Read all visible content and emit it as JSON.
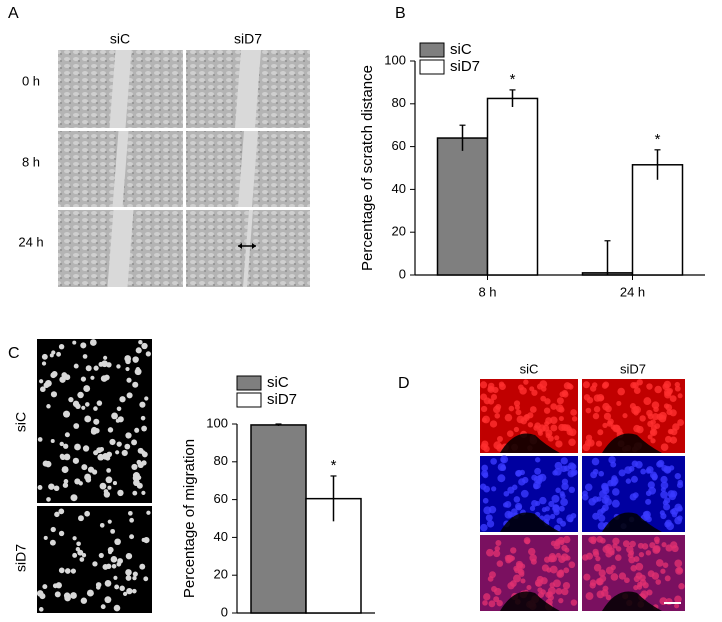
{
  "panels": {
    "A": {
      "label": "A",
      "columns": [
        "siC",
        "siD7"
      ],
      "rows": [
        "0 h",
        "8 h",
        "24 h"
      ]
    },
    "B": {
      "label": "B"
    },
    "C": {
      "label": "C",
      "rows": [
        "siC",
        "siD7"
      ]
    },
    "D": {
      "label": "D",
      "columns": [
        "siC",
        "siD7"
      ]
    }
  },
  "chart_data": [
    {
      "type": "bar",
      "ylabel": "Percentage of scratch distance",
      "categories": [
        "8 h",
        "24 h"
      ],
      "series": [
        {
          "name": "siC",
          "color": "#7f7f7f",
          "values": [
            64,
            1
          ],
          "errors": [
            6,
            15
          ]
        },
        {
          "name": "siD7",
          "color": "#ffffff",
          "values": [
            82.5,
            51.5
          ],
          "errors": [
            4,
            7
          ]
        }
      ],
      "annotations": [
        "*",
        "*"
      ],
      "ylim": [
        0,
        100
      ],
      "yticks": [
        0,
        20,
        40,
        60,
        80,
        100
      ]
    },
    {
      "type": "bar",
      "ylabel": "Percentage of migration",
      "categories": [
        null
      ],
      "series": [
        {
          "name": "siC",
          "color": "#7f7f7f",
          "values": [
            99.5
          ],
          "errors": [
            0.5
          ]
        },
        {
          "name": "siD7",
          "color": "#ffffff",
          "values": [
            60.5
          ],
          "errors": [
            12
          ]
        }
      ],
      "annotations": [
        "*"
      ],
      "ylim": [
        0,
        100
      ],
      "yticks": [
        0,
        20,
        40,
        60,
        80,
        100
      ]
    }
  ]
}
